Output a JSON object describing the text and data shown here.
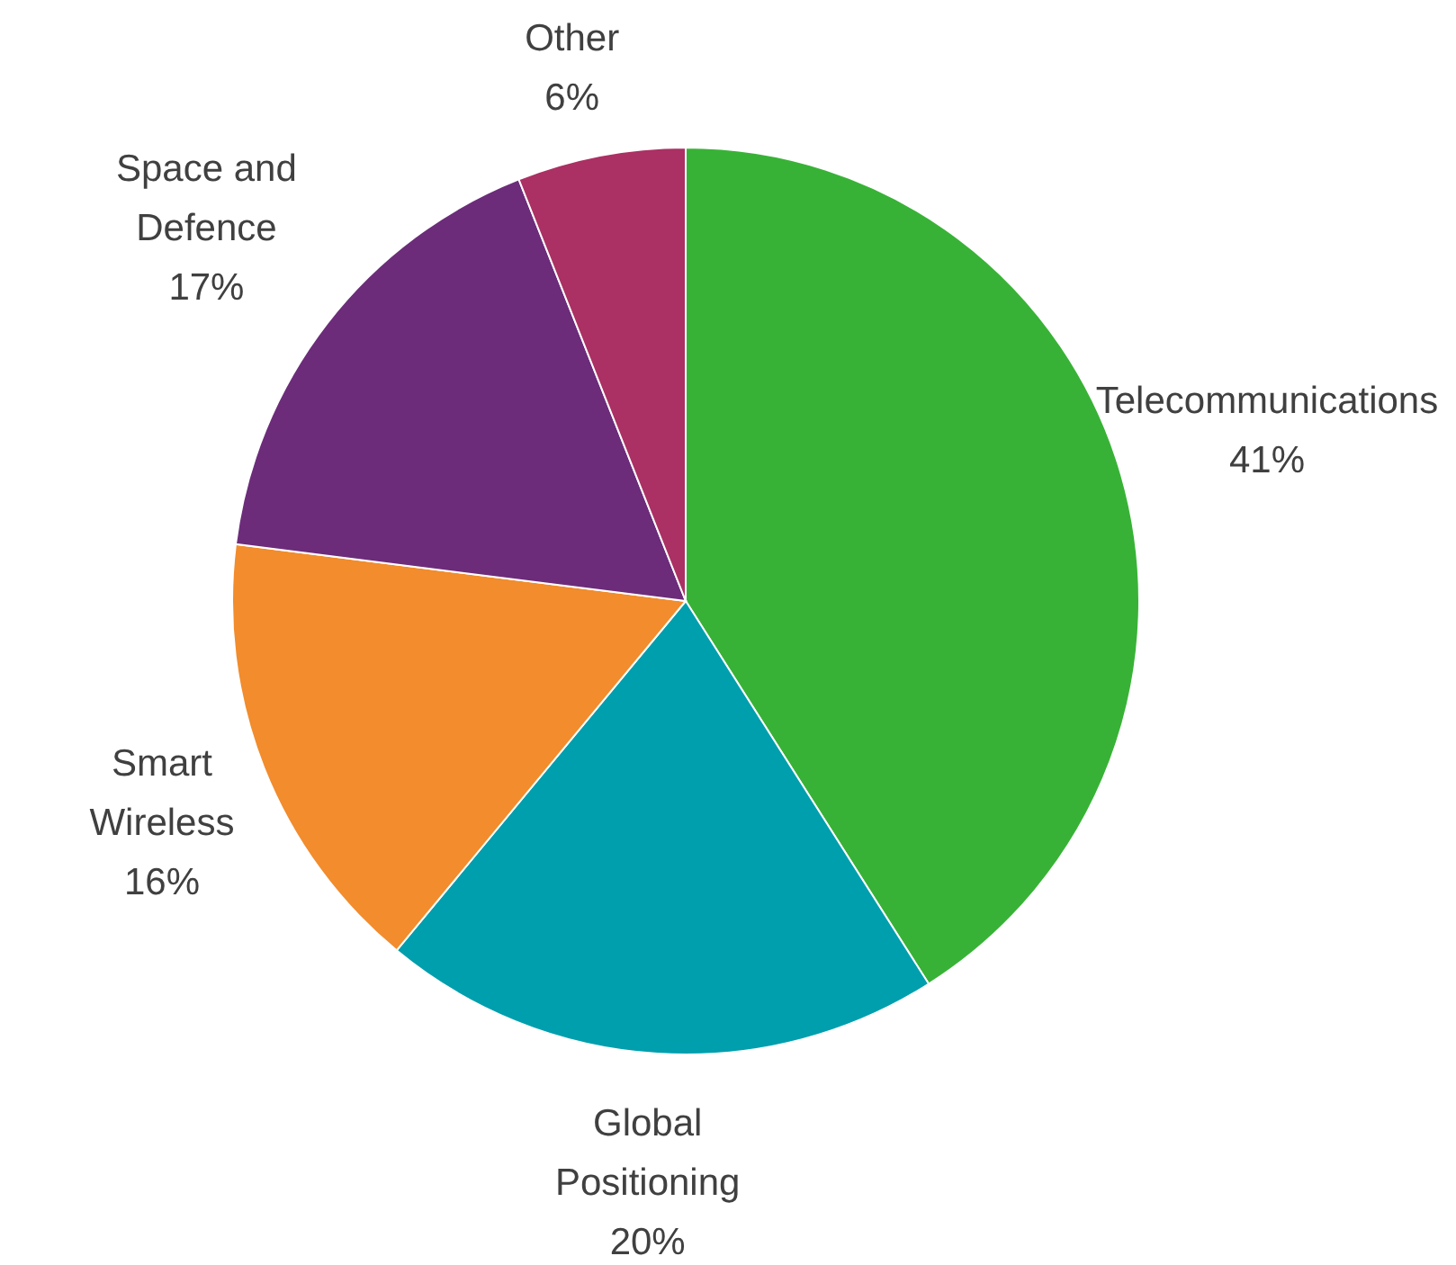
{
  "chart_data": {
    "type": "pie",
    "categories": [
      "Telecommunications",
      "Global Positioning",
      "Smart Wireless",
      "Space and Defence",
      "Other"
    ],
    "values": [
      41,
      20,
      16,
      17,
      6
    ],
    "colors": [
      "#38b236",
      "#009fae",
      "#f28c2c",
      "#6c2c7a",
      "#ab3063"
    ],
    "value_labels": [
      "41%",
      "20%",
      "16%",
      "17%",
      "6%"
    ]
  }
}
